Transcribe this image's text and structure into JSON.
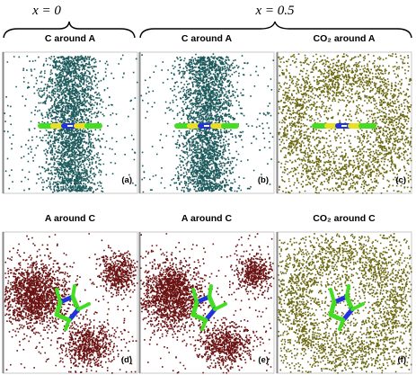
{
  "header": {
    "labels": [
      "x = 0",
      "x = 0.5"
    ]
  },
  "panels": [
    {
      "title": "C around A",
      "label": "(a)"
    },
    {
      "title": "C around A",
      "label": "(b)"
    },
    {
      "title": "CO₂ around A",
      "label": "(c)"
    },
    {
      "title": "A around C",
      "label": "(d)"
    },
    {
      "title": "A around C",
      "label": "(e)"
    },
    {
      "title": "CO₂ around C",
      "label": "(f)"
    }
  ]
}
